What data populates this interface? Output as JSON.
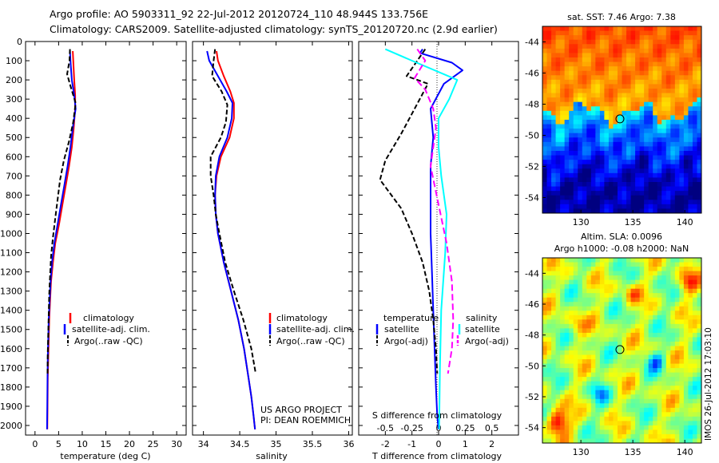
{
  "title": {
    "line1": "Argo profile: AO 5903311_92 22-Jul-2012 20120724_110 48.944S 133.756E",
    "line2": "Climatology: CARS2009. Satellite-adjusted climatology: synTS_20120720.nc (2.9d earlier)"
  },
  "legend_left": [
    "climatology",
    "satellite-adj. clim.",
    "Argo(..raw -QC)"
  ],
  "legend_diff": {
    "temperature_header": "temperature",
    "salinity_header": "salinity",
    "items": [
      "satellite",
      "Argo(-adj)",
      "satellite",
      "Argo(-adj)"
    ]
  },
  "credits": {
    "line1": "US ARGO PROJECT",
    "line2": "PI: DEAN ROEMMICH"
  },
  "map_sst": {
    "title": "sat. SST: 7.46  Argo: 7.38"
  },
  "map_sla": {
    "title1": "Altim. SLA: 0.0096",
    "title2": "Argo h1000: -0.08 h2000: NaN"
  },
  "stamp": "IMOS 26-Jul-2012 17:03:10",
  "colors": {
    "climatology": "#ff0000",
    "satellite": "#0000ff",
    "argo": "#000000",
    "sal_satellite": "#00ffff",
    "sal_argo": "#ff00ff"
  },
  "chart_data": [
    {
      "id": "temperature",
      "type": "line",
      "xlabel": "temperature (deg C)",
      "ylabel": "",
      "xlim": [
        -2,
        32
      ],
      "ylim": [
        2050,
        0
      ],
      "xticks": [
        0,
        5,
        10,
        15,
        20,
        25,
        30
      ],
      "yticks": [
        0,
        100,
        200,
        300,
        400,
        500,
        600,
        700,
        800,
        900,
        1000,
        1100,
        1200,
        1300,
        1400,
        1500,
        1600,
        1700,
        1800,
        1900,
        2000
      ],
      "series": [
        {
          "name": "climatology",
          "color": "#ff0000",
          "dash": "",
          "x": [
            8.0,
            8.1,
            8.3,
            8.5,
            8.5,
            8.2,
            7.8,
            7.2,
            6.5,
            5.8,
            5.1,
            4.3,
            3.8,
            3.4,
            3.2,
            3.0,
            2.9,
            2.8,
            2.7,
            2.65,
            2.6
          ],
          "y": [
            50,
            100,
            200,
            280,
            350,
            450,
            550,
            650,
            750,
            850,
            950,
            1050,
            1150,
            1250,
            1350,
            1450,
            1550,
            1650,
            1750,
            1900,
            2020
          ]
        },
        {
          "name": "satellite-adj. clim.",
          "color": "#0000ff",
          "dash": "",
          "x": [
            7.4,
            7.5,
            7.8,
            8.3,
            8.6,
            8.0,
            7.5,
            6.9,
            6.2,
            5.5,
            4.8,
            4.1,
            3.6,
            3.3,
            3.1,
            2.9,
            2.8,
            2.7,
            2.65,
            2.6,
            2.55
          ],
          "y": [
            50,
            100,
            200,
            280,
            350,
            450,
            550,
            650,
            750,
            850,
            950,
            1050,
            1150,
            1250,
            1350,
            1450,
            1550,
            1650,
            1750,
            1900,
            2020
          ]
        },
        {
          "name": "Argo(..raw -QC)",
          "color": "#000000",
          "dash": "6,3",
          "x": [
            7.4,
            7.3,
            6.8,
            7.6,
            8.6,
            8.1,
            7.2,
            6.1,
            5.3,
            4.8,
            4.3,
            3.8,
            3.4,
            3.2,
            3.0,
            2.9,
            2.8,
            2.7,
            2.65
          ],
          "y": [
            40,
            100,
            170,
            240,
            320,
            420,
            520,
            620,
            720,
            820,
            920,
            1020,
            1120,
            1220,
            1320,
            1420,
            1520,
            1620,
            1730
          ]
        }
      ]
    },
    {
      "id": "salinity",
      "type": "line",
      "xlabel": "salinity",
      "ylabel": "",
      "xlim": [
        33.85,
        36.05
      ],
      "ylim": [
        2050,
        0
      ],
      "xticks": [
        34,
        34.5,
        35,
        35.5,
        36
      ],
      "xticklabels": [
        "34",
        "34.5",
        "35",
        "35.5",
        "36"
      ],
      "series": [
        {
          "name": "climatology",
          "color": "#ff0000",
          "dash": "",
          "x": [
            34.18,
            34.2,
            34.28,
            34.37,
            34.42,
            34.42,
            34.36,
            34.24,
            34.18,
            34.16,
            34.17,
            34.2,
            34.28,
            34.38,
            34.48,
            34.56,
            34.62,
            34.66,
            34.69,
            34.71
          ],
          "y": [
            50,
            100,
            180,
            260,
            320,
            400,
            500,
            600,
            700,
            800,
            900,
            1000,
            1150,
            1300,
            1450,
            1600,
            1750,
            1850,
            1950,
            2020
          ]
        },
        {
          "name": "satellite-adj. clim.",
          "color": "#0000ff",
          "dash": "",
          "x": [
            34.05,
            34.08,
            34.2,
            34.32,
            34.4,
            34.39,
            34.33,
            34.22,
            34.17,
            34.16,
            34.17,
            34.2,
            34.28,
            34.38,
            34.48,
            34.56,
            34.62,
            34.66,
            34.69,
            34.71
          ],
          "y": [
            50,
            100,
            180,
            260,
            320,
            400,
            500,
            600,
            700,
            800,
            900,
            1000,
            1150,
            1300,
            1450,
            1600,
            1750,
            1850,
            1950,
            2020
          ]
        },
        {
          "name": "Argo(..raw -QC)",
          "color": "#000000",
          "dash": "6,3",
          "x": [
            34.16,
            34.14,
            34.12,
            34.25,
            34.33,
            34.31,
            34.24,
            34.1,
            34.1,
            34.14,
            34.17,
            34.22,
            34.3,
            34.42,
            34.55,
            34.66,
            34.72
          ],
          "y": [
            40,
            100,
            180,
            260,
            330,
            420,
            500,
            600,
            700,
            800,
            900,
            1000,
            1150,
            1300,
            1450,
            1600,
            1730
          ]
        }
      ]
    },
    {
      "id": "difference",
      "type": "line",
      "xlabel": "T difference from climatology",
      "xlabel_top": "S difference from climatology",
      "xlim": [
        -3,
        3
      ],
      "ylim": [
        2050,
        0
      ],
      "xticks": [
        -2,
        -1,
        0,
        1,
        2
      ],
      "s_ticklabels": [
        "-0.5",
        "-0.25",
        "0",
        "0.25",
        "0.5"
      ],
      "series": [
        {
          "name": "temperature satellite",
          "color": "#0000ff",
          "dash": "",
          "x": [
            -0.6,
            -0.7,
            0.5,
            0.9,
            0.2,
            -0.3,
            -0.2,
            -0.3,
            -0.3,
            -0.3,
            -0.25,
            -0.2,
            -0.15,
            -0.1,
            -0.05,
            0.0
          ],
          "y": [
            40,
            60,
            110,
            150,
            220,
            350,
            500,
            650,
            800,
            1000,
            1200,
            1400,
            1600,
            1800,
            1950,
            2020
          ]
        },
        {
          "name": "temperature Argo(-adj)",
          "color": "#000000",
          "dash": "6,3",
          "x": [
            -0.5,
            -1.2,
            -0.4,
            -0.9,
            -1.4,
            -2.0,
            -2.2,
            -1.4,
            -1.0,
            -0.6,
            -0.35,
            -0.2,
            -0.1,
            -0.05
          ],
          "y": [
            40,
            180,
            220,
            350,
            480,
            620,
            720,
            870,
            1000,
            1150,
            1300,
            1450,
            1600,
            1730
          ]
        },
        {
          "name": "salinity satellite",
          "color": "#00ffff",
          "dash": "",
          "x": [
            -2.0,
            -1.0,
            0.7,
            0.4,
            0.0,
            0.0,
            0.1,
            0.3,
            0.25,
            0.1,
            0.05,
            0.02
          ],
          "y": [
            40,
            100,
            200,
            300,
            400,
            550,
            700,
            900,
            1100,
            1400,
            1700,
            2020
          ]
        },
        {
          "name": "salinity Argo(-adj)",
          "color": "#ff00ff",
          "dash": "8,4",
          "x": [
            -0.8,
            -0.5,
            -0.9,
            -0.5,
            -0.2,
            -0.1,
            -0.3,
            0.0,
            0.3,
            0.5,
            0.55,
            0.5,
            0.35
          ],
          "y": [
            40,
            100,
            190,
            250,
            350,
            450,
            650,
            850,
            1050,
            1250,
            1450,
            1600,
            1730
          ]
        }
      ]
    },
    {
      "id": "sst_map",
      "type": "heatmap",
      "title": "sat. SST: 7.46  Argo: 7.38",
      "xlim": [
        126.3,
        141.6
      ],
      "ylim": [
        -55,
        -43
      ],
      "xticks": [
        130,
        135,
        140
      ],
      "yticks": [
        -44,
        -46,
        -48,
        -50,
        -52,
        -54
      ],
      "marker": {
        "lon": 133.756,
        "lat": -48.944
      }
    },
    {
      "id": "sla_map",
      "type": "heatmap",
      "title": "Altim. SLA: 0.0096",
      "xlim": [
        126.3,
        141.6
      ],
      "ylim": [
        -55,
        -43
      ],
      "xticks": [
        130,
        135,
        140
      ],
      "yticks": [
        -44,
        -46,
        -48,
        -50,
        -52,
        -54
      ],
      "marker": {
        "lon": 133.756,
        "lat": -48.944
      }
    }
  ]
}
